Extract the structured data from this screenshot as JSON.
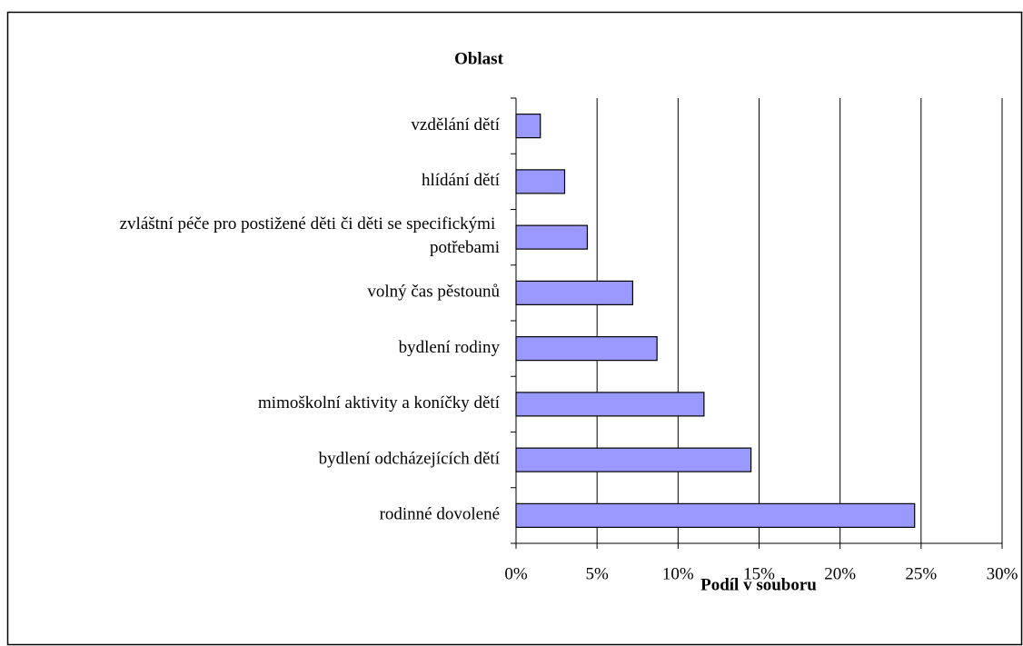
{
  "chart_data": {
    "type": "bar",
    "orientation": "horizontal",
    "y_title": "Oblast",
    "x_title": "Podíl v souboru",
    "categories": [
      "vzdělání dětí",
      "hlídání dětí",
      "zvláštní péče pro postižené děti či děti se specifickými potřebami",
      "volný čas pěstounů",
      "bydlení rodiny",
      "mimoškolní aktivity a koníčky dětí",
      "bydlení odcházejících dětí",
      "rodinné dovolené"
    ],
    "values": [
      1.5,
      3.0,
      4.4,
      7.2,
      8.7,
      11.6,
      14.5,
      24.6
    ],
    "color": "#9999ff",
    "xlim": [
      0,
      30
    ],
    "xticks": [
      {
        "value": 0,
        "label": "0%"
      },
      {
        "value": 5,
        "label": "5%"
      },
      {
        "value": 10,
        "label": "10%"
      },
      {
        "value": 15,
        "label": "15%"
      },
      {
        "value": 20,
        "label": "20%"
      },
      {
        "value": 25,
        "label": "25%"
      },
      {
        "value": 30,
        "label": "30%"
      }
    ],
    "grid": true
  }
}
